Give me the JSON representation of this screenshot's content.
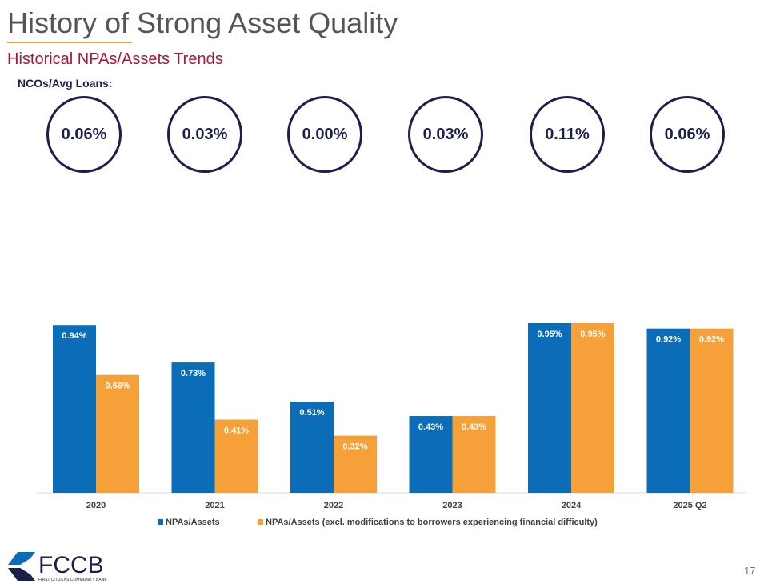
{
  "header": {
    "title": "History of Strong Asset Quality",
    "subtitle": "Historical NPAs/Assets Trends",
    "nco_label": "NCOs/Avg Loans:"
  },
  "nco_values": [
    "0.06%",
    "0.03%",
    "0.00%",
    "0.03%",
    "0.11%",
    "0.06%"
  ],
  "footer": {
    "logo_text": "FCCB",
    "logo_tagline": "FIRST CITIZENS COMMUNITY BANK",
    "page_number": "17"
  },
  "colors": {
    "navy": "#1b1f4a",
    "blue": "#0b6db7",
    "orange": "#f6a03a",
    "crimson": "#a8173e"
  },
  "chart_data": {
    "type": "bar",
    "categories": [
      "2020",
      "2021",
      "2022",
      "2023",
      "2024",
      "2025 Q2"
    ],
    "series": [
      {
        "name": "NPAs/Assets",
        "values": [
          0.94,
          0.73,
          0.51,
          0.43,
          0.95,
          0.92
        ],
        "labels": [
          "0.94%",
          "0.73%",
          "0.51%",
          "0.43%",
          "0.95%",
          "0.92%"
        ]
      },
      {
        "name": "NPAs/Assets (excl. modifications to borrowers experiencing financial difficulty)",
        "values": [
          0.66,
          0.41,
          0.32,
          0.43,
          0.95,
          0.92
        ],
        "labels": [
          "0.66%",
          "0.41%",
          "0.32%",
          "0.43%",
          "0.95%",
          "0.92%"
        ]
      }
    ],
    "ylim": [
      0,
      0.95
    ],
    "legend": "bottom-center"
  }
}
